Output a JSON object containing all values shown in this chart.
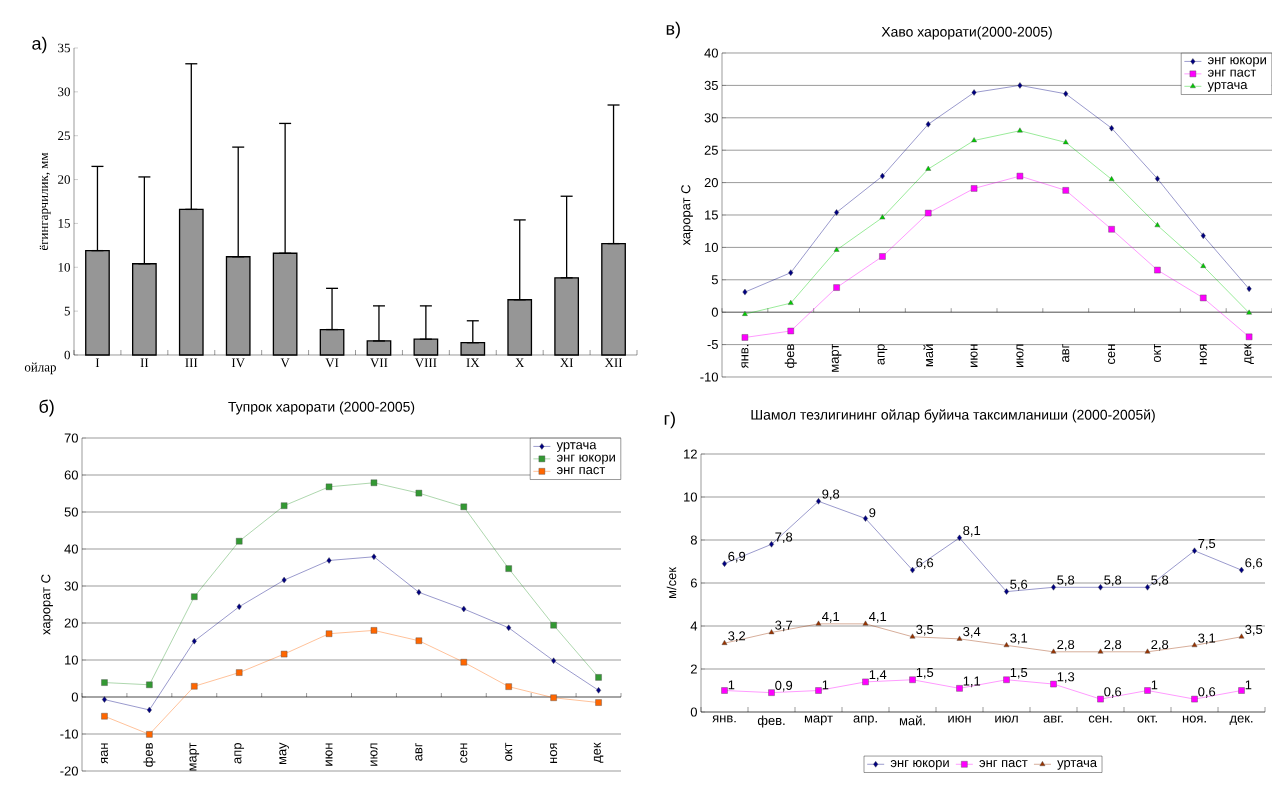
{
  "chart_data": [
    {
      "type": "bar",
      "annotations": [
        "а)"
      ],
      "xlabel": "ойлар",
      "ylabel": "ёгингарчилик, мм",
      "categories": [
        "I",
        "II",
        "III",
        "IV",
        "V",
        "VI",
        "VII",
        "VIII",
        "IX",
        "X",
        "XI",
        "XII"
      ],
      "values": [
        11.9,
        10.4,
        16.6,
        11.2,
        11.6,
        2.9,
        1.6,
        1.8,
        1.4,
        6.3,
        8.8,
        12.7
      ],
      "errors": [
        [
          11.9,
          21.5
        ],
        [
          10.4,
          20.3
        ],
        [
          16.6,
          33.2
        ],
        [
          11.2,
          23.7
        ],
        [
          11.6,
          26.4
        ],
        [
          2.9,
          7.6
        ],
        [
          1.6,
          5.6
        ],
        [
          1.8,
          5.6
        ],
        [
          1.4,
          3.9
        ],
        [
          6.3,
          15.4
        ],
        [
          8.8,
          18.1
        ],
        [
          12.7,
          28.5
        ]
      ],
      "color": "#969696",
      "ylim": [
        0,
        35
      ],
      "yticks": [
        0,
        5,
        10,
        15,
        20,
        25,
        30,
        35
      ],
      "grid": false
    },
    {
      "type": "line",
      "title": "Хаво харорати(2000-2005)",
      "annotations": [
        "в)"
      ],
      "ylabel": "харорат  С",
      "categories": [
        "янв.",
        "фев",
        "март",
        "апр",
        "май",
        "июн",
        "июл",
        "авг",
        "сен",
        "окт",
        "ноя",
        "дек"
      ],
      "series": [
        {
          "name": "энг юкори",
          "color": "#000080",
          "marker": "diamond",
          "values": [
            3.1,
            6.1,
            15.4,
            21,
            29,
            33.9,
            35,
            33.7,
            28.4,
            20.6,
            11.8,
            3.6
          ]
        },
        {
          "name": "энг паст",
          "color": "#ff00ff",
          "marker": "square",
          "values": [
            -3.9,
            -2.9,
            3.8,
            8.6,
            15.3,
            19.1,
            21,
            18.8,
            12.8,
            6.5,
            2.2,
            -3.8
          ]
        },
        {
          "name": "уртача",
          "color": "#00cc00",
          "marker": "triangle",
          "values": [
            -0.3,
            1.4,
            9.6,
            14.6,
            22.1,
            26.5,
            28,
            26.2,
            20.5,
            13.4,
            7.1,
            -0.1
          ]
        }
      ],
      "ylim": [
        -10,
        40
      ],
      "yticks": [
        -10,
        -5,
        0,
        5,
        10,
        15,
        20,
        25,
        30,
        35,
        40
      ],
      "grid": "y",
      "legend": "top right"
    },
    {
      "type": "line",
      "title": "Тупрок харорати (2000-2005)",
      "annotations": [
        "б)"
      ],
      "ylabel": "харорат С",
      "categories": [
        "яан",
        "фев",
        "март",
        "апр",
        "мау",
        "июн",
        "июл",
        "авг",
        "сен",
        "окт",
        "ноя",
        "дек"
      ],
      "series": [
        {
          "name": "уртача",
          "color": "#000080",
          "marker": "diamond",
          "values": [
            -0.7,
            -3.5,
            15.1,
            24.4,
            31.6,
            36.9,
            37.9,
            28.3,
            23.8,
            18.7,
            9.8,
            1.8
          ]
        },
        {
          "name": "энг юкори",
          "color": "#339933",
          "marker": "square",
          "values": [
            3.9,
            3.3,
            27.1,
            42.1,
            51.7,
            56.8,
            57.9,
            55.1,
            51.4,
            34.7,
            19.4,
            5.3
          ]
        },
        {
          "name": "энг паст",
          "color": "#ff6600",
          "marker": "square",
          "values": [
            -5.2,
            -10.1,
            2.9,
            6.6,
            11.6,
            17.1,
            18,
            15.2,
            9.4,
            2.8,
            -0.2,
            -1.5
          ]
        }
      ],
      "ylim": [
        -20,
        70
      ],
      "yticks": [
        -20,
        -10,
        0,
        10,
        20,
        30,
        40,
        50,
        60,
        70
      ],
      "grid": "y",
      "legend": "top right"
    },
    {
      "type": "line",
      "title": "Шамол тезлигининг ойлар буйича таксимланиши (2000-2005й)",
      "annotations": [
        "г)"
      ],
      "ylabel": "м/сек",
      "categories": [
        "янв.",
        "фев.",
        "март",
        "апр.",
        "май.",
        "июн",
        "июл",
        "авг.",
        "сен.",
        "окт.",
        "ноя.",
        "дек."
      ],
      "series": [
        {
          "name": "энг юкори",
          "color": "#000080",
          "marker": "diamond",
          "values": [
            6.9,
            7.8,
            9.8,
            9,
            6.6,
            8.1,
            5.6,
            5.8,
            5.8,
            5.8,
            7.5,
            6.6
          ],
          "value_labels": [
            "6,9",
            "7,8",
            "9,8",
            "9",
            "6,6",
            "8,1",
            "5,6",
            "5,8",
            "5,8",
            "5,8",
            "7,5",
            "6,6"
          ]
        },
        {
          "name": "энг паст",
          "color": "#ff00ff",
          "marker": "square",
          "values": [
            1,
            0.9,
            1,
            1.4,
            1.5,
            1.1,
            1.5,
            1.3,
            0.6,
            1,
            0.6,
            1
          ],
          "value_labels": [
            "1",
            "0,9",
            "1",
            "1,4",
            "1,5",
            "1,1",
            "1,5",
            "1,3",
            "0,6",
            "1",
            "0,6",
            "1"
          ]
        },
        {
          "name": "уртача",
          "color": "#993300",
          "marker": "triangle",
          "values": [
            3.2,
            3.7,
            4.1,
            4.1,
            3.5,
            3.4,
            3.1,
            2.8,
            2.8,
            2.8,
            3.1,
            3.5
          ],
          "value_labels": [
            "3,2",
            "3,7",
            "4,1",
            "4,1",
            "3,5",
            "3,4",
            "3,1",
            "2,8",
            "2,8",
            "2,8",
            "3,1",
            "3,5"
          ]
        }
      ],
      "ylim": [
        0,
        12
      ],
      "yticks": [
        0,
        2,
        4,
        6,
        8,
        10,
        12
      ],
      "grid": "y",
      "legend": "bottom"
    }
  ]
}
